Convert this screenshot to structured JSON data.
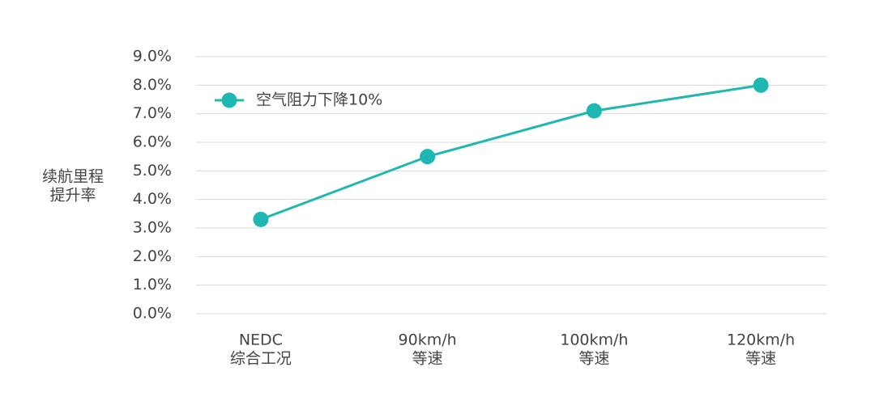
{
  "chart_data": {
    "type": "line",
    "y_label": "续航里程\n提升率",
    "categories": [
      "NEDC\n综合工况",
      "90km/h\n等速",
      "100km/h\n等速",
      "120km/h\n等速"
    ],
    "series": [
      {
        "name": "空气阻力下降10%",
        "color": "#1fb7b2",
        "values": [
          3.3,
          5.5,
          7.1,
          8.0
        ]
      }
    ],
    "ylim": [
      0,
      9
    ],
    "yticks": [
      {
        "value": 0,
        "label": "0.0%"
      },
      {
        "value": 1,
        "label": "1.0%"
      },
      {
        "value": 2,
        "label": "2.0%"
      },
      {
        "value": 3,
        "label": "3.0%"
      },
      {
        "value": 4,
        "label": "4.0%"
      },
      {
        "value": 5,
        "label": "5.0%"
      },
      {
        "value": 6,
        "label": "6.0%"
      },
      {
        "value": 7,
        "label": "7.0%"
      },
      {
        "value": 8,
        "label": "8.0%"
      },
      {
        "value": 9,
        "label": "9.0%"
      }
    ],
    "grid": true,
    "legend": "upper-left"
  }
}
